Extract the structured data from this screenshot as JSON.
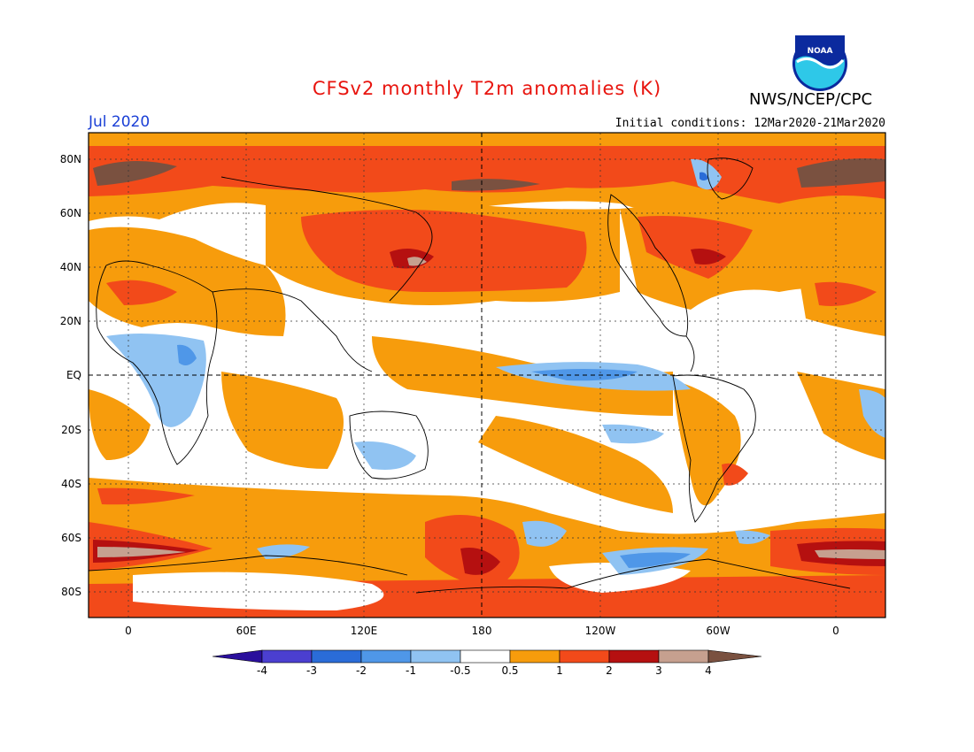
{
  "title": "CFSv2 monthly T2m anomalies (K)",
  "month": "Jul 2020",
  "initial_conditions": "Initial conditions: 12Mar2020-21Mar2020",
  "organization": "NWS/NCEP/CPC",
  "logo_text": "NOAA",
  "colors": {
    "title": "#e8140e",
    "month": "#1a3fd6",
    "n4": "#2a0f9c",
    "n3": "#4b3fd0",
    "n2": "#2a6cd8",
    "n1": "#4f97e8",
    "n05": "#90c3f2",
    "zero": "#ffffff",
    "p05": "#f79c0c",
    "p1": "#f24a1a",
    "p2": "#b51010",
    "p3": "#c6a08f",
    "p4": "#7a5140"
  },
  "lat_labels": [
    "80N",
    "60N",
    "40N",
    "20N",
    "EQ",
    "20S",
    "40S",
    "60S",
    "80S"
  ],
  "lon_labels": [
    "0",
    "60E",
    "120E",
    "180",
    "120W",
    "60W",
    "0"
  ],
  "colorbar": {
    "labels": [
      "-4",
      "-3",
      "-2",
      "-1",
      "-0.5",
      "0.5",
      "1",
      "2",
      "3",
      "4"
    ]
  }
}
